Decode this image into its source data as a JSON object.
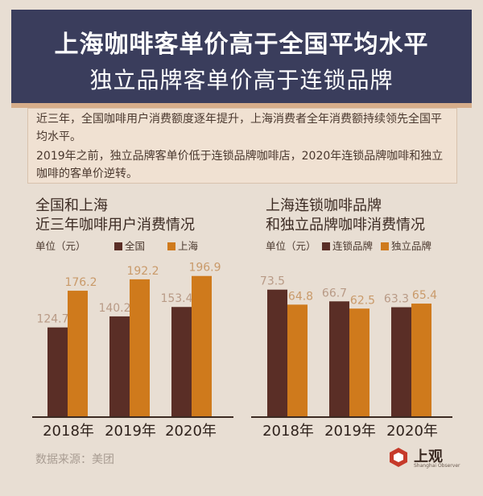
{
  "header": {
    "title": "上海咖啡客单价高于全国平均水平",
    "subtitle": "独立品牌客单价高于连锁品牌"
  },
  "summary": {
    "line1": "近三年，全国咖啡用户消费额度逐年提升，上海消费者全年消费额持续领先全国平均水平。",
    "line2": "2019年之前，独立品牌客单价低于连锁品牌咖啡店，2020年连锁品牌咖啡和独立咖啡的客单价逆转。"
  },
  "left_panel": {
    "title_line1": "全国和上海",
    "title_line2": "近三年咖啡用户消费情况",
    "unit": "单位（元）"
  },
  "right_panel": {
    "title_line1": "上海连锁咖啡品牌",
    "title_line2": "和独立品牌咖啡消费情况",
    "unit": "单位（元）"
  },
  "chart_data": [
    {
      "type": "bar",
      "categories": [
        "2018年",
        "2019年",
        "2020年"
      ],
      "series": [
        {
          "name": "全国",
          "values": [
            124.7,
            140.2,
            153.4
          ],
          "color": "#5a2e26"
        },
        {
          "name": "上海",
          "values": [
            176.2,
            192.2,
            196.9
          ],
          "color": "#cf7a1c"
        }
      ],
      "title": "全国和上海近三年咖啡用户消费情况",
      "ylabel": "单位（元）",
      "ylim": [
        0,
        200
      ],
      "legend": "top"
    },
    {
      "type": "bar",
      "categories": [
        "2018年",
        "2019年",
        "2020年"
      ],
      "series": [
        {
          "name": "连锁品牌",
          "values": [
            73.5,
            66.7,
            63.3
          ],
          "color": "#5a2e26"
        },
        {
          "name": "独立品牌",
          "values": [
            64.8,
            62.5,
            65.4
          ],
          "color": "#cf7a1c"
        }
      ],
      "title": "上海连锁咖啡品牌和独立品牌咖啡消费情况",
      "ylabel": "单位（元）",
      "ylim": [
        0,
        80
      ],
      "legend": "top"
    }
  ],
  "footer": {
    "source": "数据来源：美团",
    "logo_name": "上观",
    "logo_sub": "Shanghai Observer"
  }
}
